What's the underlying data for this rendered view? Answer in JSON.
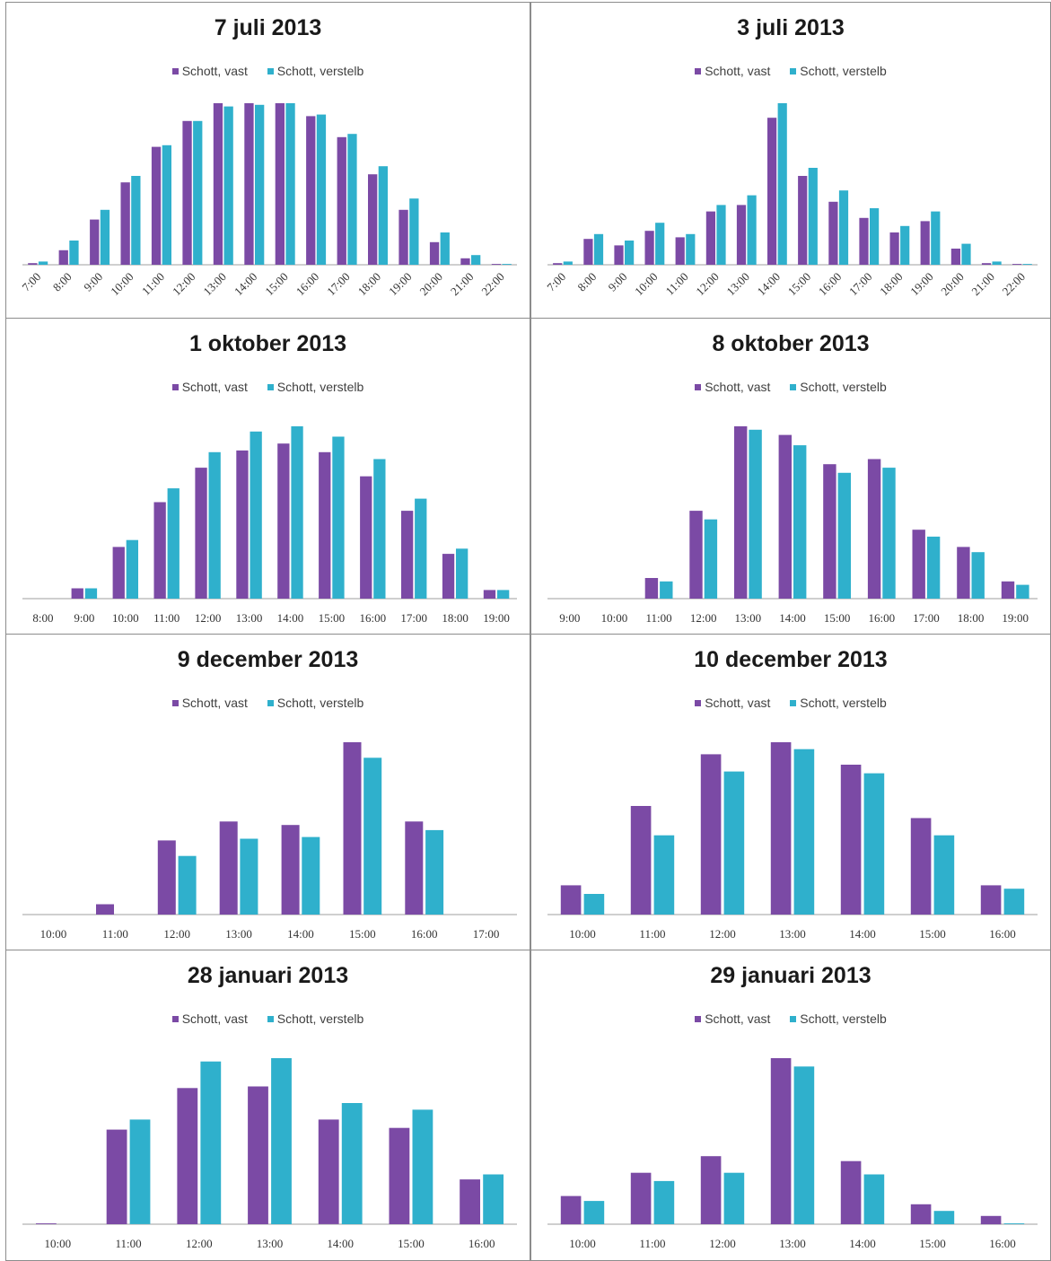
{
  "colors": {
    "vast": "#7b4aa5",
    "verstelb": "#2fb0cc",
    "axis": "#bfbfbf"
  },
  "legend": {
    "vast": "Schott, vast",
    "verstelb": "Schott, verstelb"
  },
  "chart_data": [
    {
      "type": "bar",
      "title": "7 juli 2013",
      "rotate_labels": true,
      "ylim": [
        0,
        1
      ],
      "categories": [
        "7:00",
        "8:00",
        "9:00",
        "10:00",
        "11:00",
        "12:00",
        "13:00",
        "14:00",
        "15:00",
        "16:00",
        "17:00",
        "18:00",
        "19:00",
        "20:00",
        "21:00",
        "22:00"
      ],
      "series": [
        {
          "name": "Schott, vast",
          "values": [
            0.01,
            0.09,
            0.28,
            0.51,
            0.73,
            0.89,
            1.0,
            1.0,
            1.0,
            0.92,
            0.79,
            0.56,
            0.34,
            0.14,
            0.04,
            0.005
          ]
        },
        {
          "name": "Schott, verstelb",
          "values": [
            0.02,
            0.15,
            0.34,
            0.55,
            0.74,
            0.89,
            0.98,
            0.99,
            1.0,
            0.93,
            0.81,
            0.61,
            0.41,
            0.2,
            0.06,
            0.005
          ]
        }
      ]
    },
    {
      "type": "bar",
      "title": "3 juli 2013",
      "rotate_labels": true,
      "ylim": [
        0,
        1
      ],
      "categories": [
        "7:00",
        "8:00",
        "9:00",
        "10:00",
        "11:00",
        "12:00",
        "13:00",
        "14:00",
        "15:00",
        "16:00",
        "17:00",
        "18:00",
        "19:00",
        "20:00",
        "21:00",
        "22:00"
      ],
      "series": [
        {
          "name": "Schott, vast",
          "values": [
            0.01,
            0.16,
            0.12,
            0.21,
            0.17,
            0.33,
            0.37,
            0.91,
            0.55,
            0.39,
            0.29,
            0.2,
            0.27,
            0.1,
            0.01,
            0.005
          ]
        },
        {
          "name": "Schott, verstelb",
          "values": [
            0.02,
            0.19,
            0.15,
            0.26,
            0.19,
            0.37,
            0.43,
            1.0,
            0.6,
            0.46,
            0.35,
            0.24,
            0.33,
            0.13,
            0.02,
            0.005
          ]
        }
      ]
    },
    {
      "type": "bar",
      "title": "1 oktober 2013",
      "rotate_labels": false,
      "ylim": [
        0,
        1
      ],
      "categories": [
        "8:00",
        "9:00",
        "10:00",
        "11:00",
        "12:00",
        "13:00",
        "14:00",
        "15:00",
        "16:00",
        "17:00",
        "18:00",
        "19:00"
      ],
      "series": [
        {
          "name": "Schott, vast",
          "values": [
            0.0,
            0.06,
            0.3,
            0.56,
            0.76,
            0.86,
            0.9,
            0.85,
            0.71,
            0.51,
            0.26,
            0.05
          ]
        },
        {
          "name": "Schott, verstelb",
          "values": [
            0.0,
            0.06,
            0.34,
            0.64,
            0.85,
            0.97,
            1.0,
            0.94,
            0.81,
            0.58,
            0.29,
            0.05
          ]
        }
      ]
    },
    {
      "type": "bar",
      "title": "8 oktober 2013",
      "rotate_labels": false,
      "ylim": [
        0,
        1
      ],
      "categories": [
        "9:00",
        "10:00",
        "11:00",
        "12:00",
        "13:00",
        "14:00",
        "15:00",
        "16:00",
        "17:00",
        "18:00",
        "19:00"
      ],
      "series": [
        {
          "name": "Schott, vast",
          "values": [
            0.0,
            0.0,
            0.12,
            0.51,
            1.0,
            0.95,
            0.78,
            0.81,
            0.4,
            0.3,
            0.1
          ]
        },
        {
          "name": "Schott, verstelb",
          "values": [
            0.0,
            0.0,
            0.1,
            0.46,
            0.98,
            0.89,
            0.73,
            0.76,
            0.36,
            0.27,
            0.08
          ]
        }
      ]
    },
    {
      "type": "bar",
      "title": "9 december 2013",
      "rotate_labels": false,
      "ylim": [
        0,
        1
      ],
      "categories": [
        "10:00",
        "11:00",
        "12:00",
        "13:00",
        "14:00",
        "15:00",
        "16:00",
        "17:00"
      ],
      "series": [
        {
          "name": "Schott, vast",
          "values": [
            0.0,
            0.06,
            0.43,
            0.54,
            0.52,
            1.0,
            0.54,
            0.0
          ]
        },
        {
          "name": "Schott, verstelb",
          "values": [
            0.0,
            0.0,
            0.34,
            0.44,
            0.45,
            0.91,
            0.49,
            0.0
          ]
        }
      ]
    },
    {
      "type": "bar",
      "title": "10 december 2013",
      "rotate_labels": false,
      "ylim": [
        0,
        1
      ],
      "categories": [
        "10:00",
        "11:00",
        "12:00",
        "13:00",
        "14:00",
        "15:00",
        "16:00"
      ],
      "series": [
        {
          "name": "Schott, vast",
          "values": [
            0.17,
            0.63,
            0.93,
            1.0,
            0.87,
            0.56,
            0.17
          ]
        },
        {
          "name": "Schott, verstelb",
          "values": [
            0.12,
            0.46,
            0.83,
            0.96,
            0.82,
            0.46,
            0.15
          ]
        }
      ]
    },
    {
      "type": "bar",
      "title": "28 januari 2013",
      "rotate_labels": false,
      "ylim": [
        0,
        1
      ],
      "categories": [
        "10:00",
        "11:00",
        "12:00",
        "13:00",
        "14:00",
        "15:00",
        "16:00"
      ],
      "series": [
        {
          "name": "Schott, vast",
          "values": [
            0.005,
            0.57,
            0.82,
            0.83,
            0.63,
            0.58,
            0.27
          ]
        },
        {
          "name": "Schott, verstelb",
          "values": [
            0.0,
            0.63,
            0.98,
            1.0,
            0.73,
            0.69,
            0.3
          ]
        }
      ]
    },
    {
      "type": "bar",
      "title": "29 januari 2013",
      "rotate_labels": false,
      "ylim": [
        0,
        1
      ],
      "categories": [
        "10:00",
        "11:00",
        "12:00",
        "13:00",
        "14:00",
        "15:00",
        "16:00"
      ],
      "series": [
        {
          "name": "Schott, vast",
          "values": [
            0.17,
            0.31,
            0.41,
            1.0,
            0.38,
            0.12,
            0.05
          ]
        },
        {
          "name": "Schott, verstelb",
          "values": [
            0.14,
            0.26,
            0.31,
            0.95,
            0.3,
            0.08,
            0.005
          ]
        }
      ]
    }
  ]
}
